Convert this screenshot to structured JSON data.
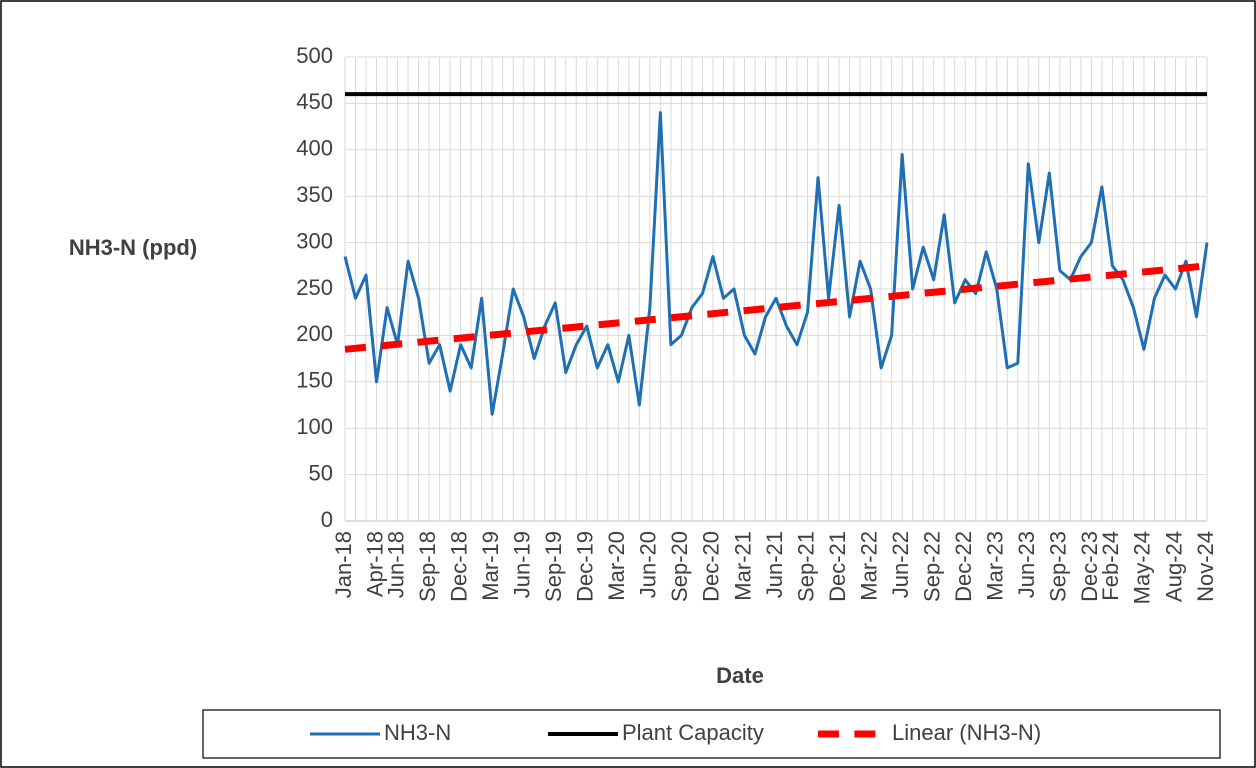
{
  "chart_data": {
    "type": "line",
    "x_label": "Date",
    "y_label": "NH3-N (ppd)",
    "categories": [
      "Jan-18",
      null,
      null,
      "Apr-18",
      null,
      "Jun-18",
      null,
      null,
      "Sep-18",
      null,
      null,
      "Dec-18",
      null,
      null,
      "Mar-19",
      null,
      null,
      "Jun-19",
      null,
      null,
      "Sep-19",
      null,
      null,
      "Dec-19",
      null,
      null,
      "Mar-20",
      null,
      null,
      "Jun-20",
      null,
      null,
      "Sep-20",
      null,
      null,
      "Dec-20",
      null,
      null,
      "Mar-21",
      null,
      null,
      "Jun-21",
      null,
      null,
      "Sep-21",
      null,
      null,
      "Dec-21",
      null,
      null,
      "Mar-22",
      null,
      null,
      "Jun-22",
      null,
      null,
      "Sep-22",
      null,
      null,
      "Dec-22",
      null,
      null,
      "Mar-23",
      null,
      null,
      "Jun-23",
      null,
      null,
      "Sep-23",
      null,
      null,
      "Dec-23",
      null,
      "Feb-24",
      null,
      null,
      "May-24",
      null,
      null,
      "Aug-24",
      null,
      null,
      "Nov-24"
    ],
    "series": [
      {
        "name": "NH3-N",
        "color": "#1f6fb4",
        "width": 3,
        "dash": false,
        "values": [
          285,
          240,
          265,
          150,
          230,
          190,
          280,
          240,
          170,
          190,
          140,
          190,
          165,
          240,
          115,
          180,
          250,
          220,
          175,
          210,
          235,
          160,
          190,
          210,
          165,
          190,
          150,
          200,
          125,
          230,
          440,
          190,
          200,
          230,
          245,
          285,
          240,
          250,
          200,
          180,
          220,
          240,
          210,
          190,
          225,
          370,
          240,
          340,
          220,
          280,
          250,
          165,
          200,
          395,
          250,
          295,
          260,
          330,
          235,
          260,
          245,
          290,
          250,
          165,
          170,
          385,
          300,
          375,
          270,
          260,
          285,
          300,
          360,
          275,
          260,
          230,
          185,
          240,
          265,
          250,
          280,
          220,
          300
        ]
      },
      {
        "name": "Plant Capacity",
        "color": "#000000",
        "width": 4,
        "dash": false,
        "values": [
          460,
          460,
          460,
          460,
          460,
          460,
          460,
          460,
          460,
          460,
          460,
          460,
          460,
          460,
          460,
          460,
          460,
          460,
          460,
          460,
          460,
          460,
          460,
          460,
          460,
          460,
          460,
          460,
          460,
          460,
          460,
          460,
          460,
          460,
          460,
          460,
          460,
          460,
          460,
          460,
          460,
          460,
          460,
          460,
          460,
          460,
          460,
          460,
          460,
          460,
          460,
          460,
          460,
          460,
          460,
          460,
          460,
          460,
          460,
          460,
          460,
          460,
          460,
          460,
          460,
          460,
          460,
          460,
          460,
          460,
          460,
          460,
          460,
          460,
          460,
          460,
          460,
          460,
          460,
          460,
          460,
          460,
          460
        ]
      },
      {
        "name": "Linear (NH3-N)",
        "color": "#ff0000",
        "width": 7,
        "dash": true,
        "values": [
          185.0,
          186.1,
          187.2,
          188.3,
          189.4,
          190.5,
          191.6,
          192.7,
          193.8,
          194.9,
          196.0,
          197.1,
          198.2,
          199.3,
          200.4,
          201.5,
          202.6,
          203.7,
          204.8,
          205.9,
          207.0,
          208.0,
          209.1,
          210.2,
          211.3,
          212.4,
          213.5,
          214.6,
          215.7,
          216.8,
          217.9,
          219.0,
          220.1,
          221.2,
          222.3,
          223.4,
          224.5,
          225.6,
          226.7,
          227.8,
          228.9,
          230.0,
          231.1,
          232.2,
          233.3,
          234.4,
          235.5,
          236.6,
          237.7,
          238.8,
          239.9,
          241.0,
          242.1,
          243.2,
          244.3,
          245.4,
          246.5,
          247.6,
          248.7,
          249.8,
          250.9,
          252.0,
          253.0,
          254.1,
          255.2,
          256.3,
          257.4,
          258.5,
          259.6,
          260.7,
          261.8,
          262.9,
          264.0,
          265.1,
          266.2,
          267.3,
          268.4,
          269.5,
          270.6,
          271.7,
          272.8,
          273.9,
          275.0
        ]
      }
    ],
    "ylim": [
      0,
      500
    ],
    "yticks": [
      0,
      50,
      100,
      150,
      200,
      250,
      300,
      350,
      400,
      450,
      500
    ],
    "grid": true,
    "legend": "bottom"
  }
}
